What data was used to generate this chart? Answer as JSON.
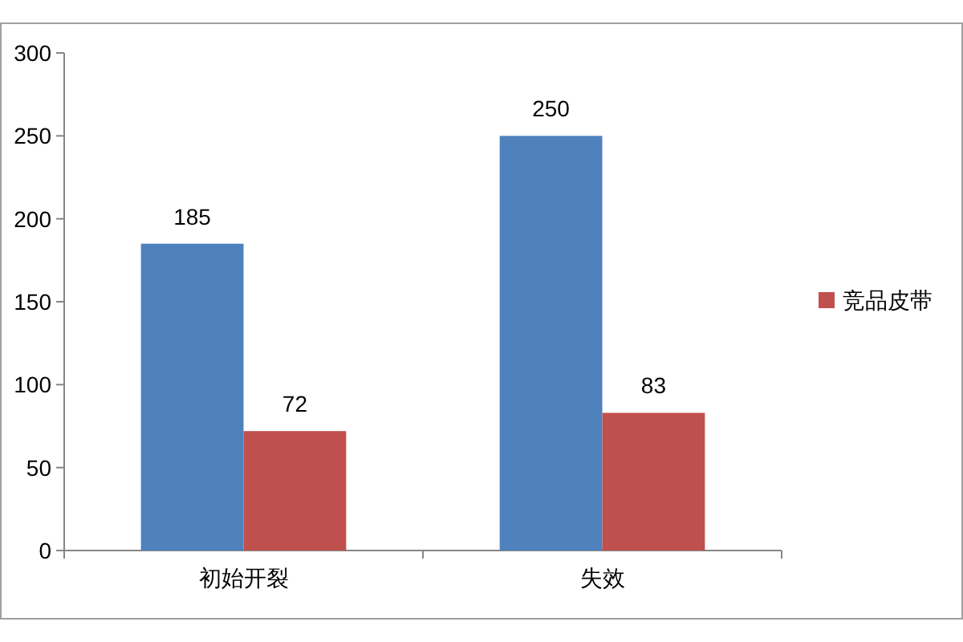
{
  "chart_data": {
    "type": "bar",
    "categories": [
      "初始开裂",
      "失效"
    ],
    "series": [
      {
        "color": "#4f81bd",
        "values": [
          185,
          250
        ]
      },
      {
        "name": "竞品皮带",
        "color": "#c0504d",
        "values": [
          72,
          83
        ]
      }
    ],
    "ylim": [
      0,
      300
    ],
    "yticks": [
      0,
      50,
      100,
      150,
      200,
      250,
      300
    ],
    "data_labels": true,
    "legend": "right"
  }
}
